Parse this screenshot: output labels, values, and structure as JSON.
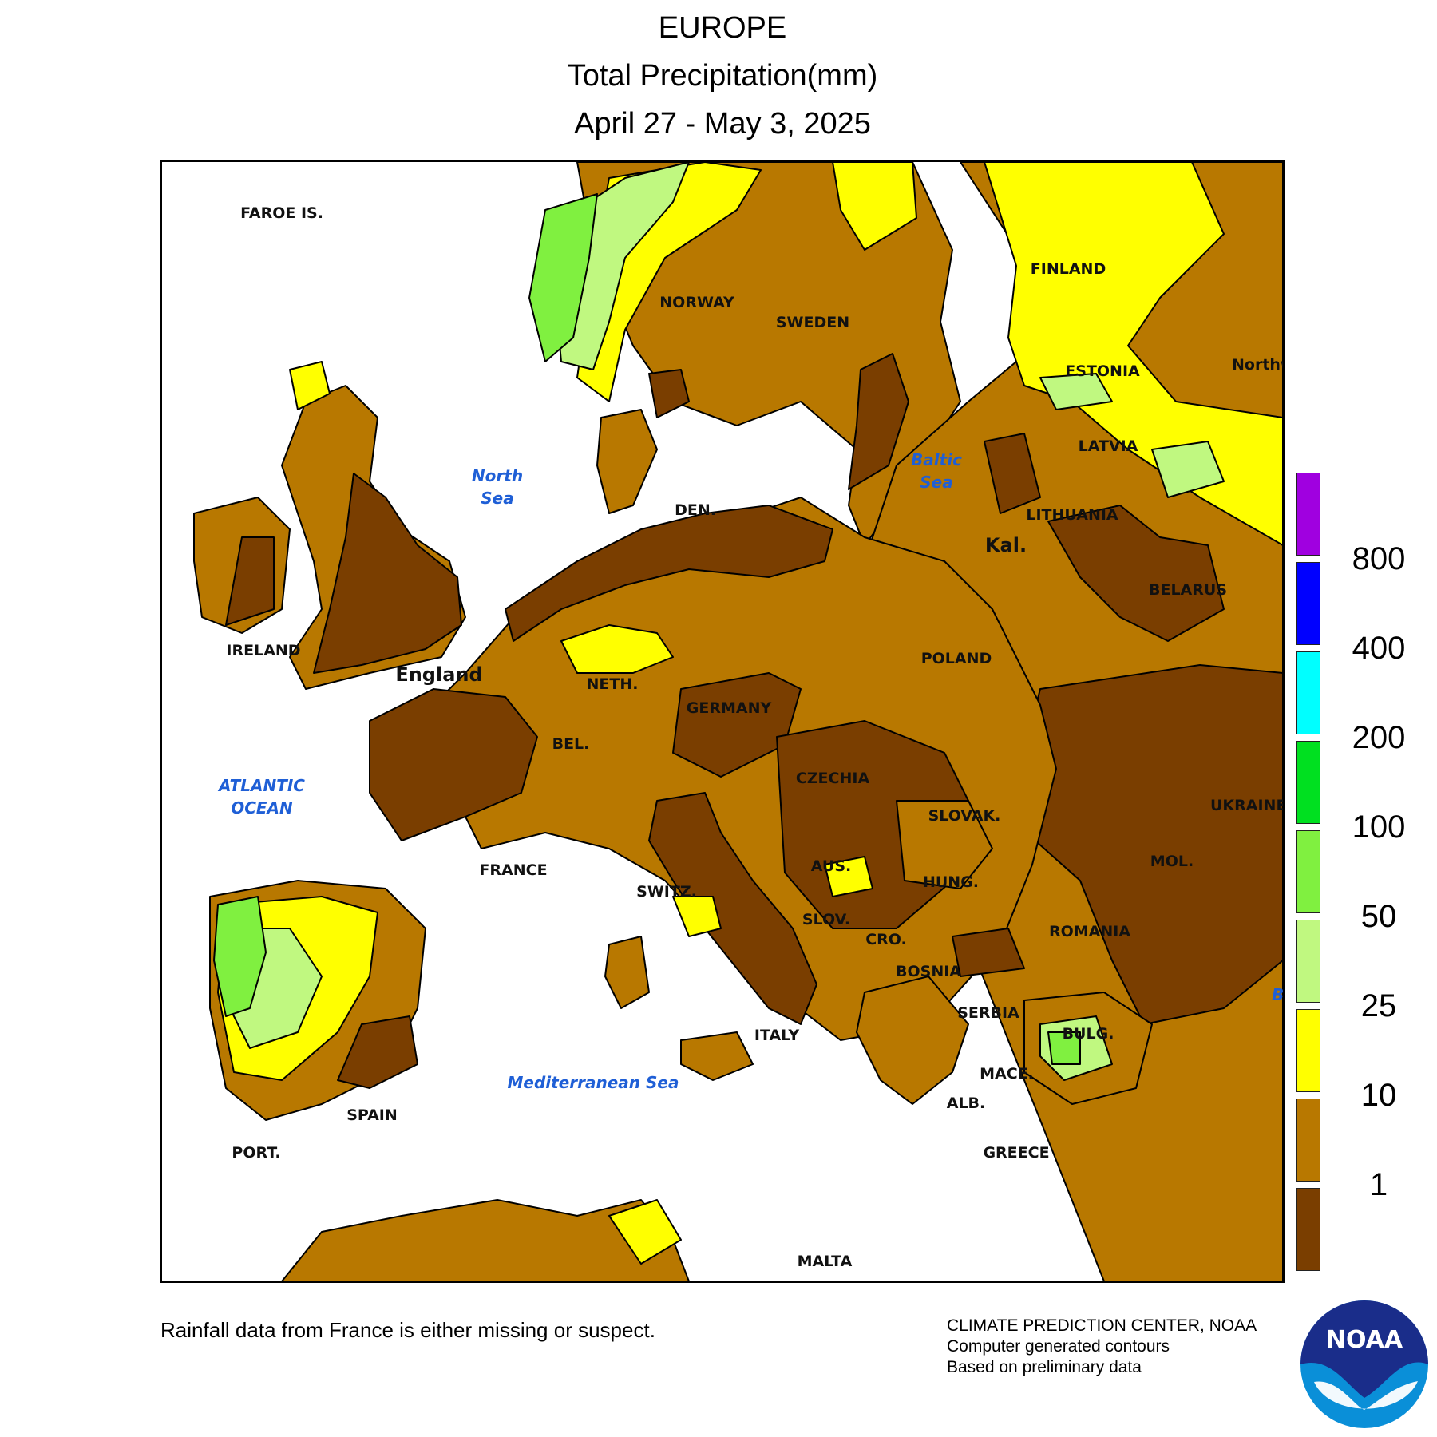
{
  "header": {
    "region": "EUROPE",
    "product": "Total Precipitation(mm)",
    "period": "April 27 - May 3, 2025"
  },
  "map": {
    "countries": [
      {
        "key": "faroe",
        "label": "FAROE IS."
      },
      {
        "key": "norway",
        "label": "NORWAY"
      },
      {
        "key": "sweden",
        "label": "SWEDEN"
      },
      {
        "key": "finland",
        "label": "FINLAND"
      },
      {
        "key": "estonia",
        "label": "ESTONIA"
      },
      {
        "key": "latvia",
        "label": "LATVIA"
      },
      {
        "key": "lithuania",
        "label": "LITHUANIA"
      },
      {
        "key": "kaliningrad",
        "label": "Kal."
      },
      {
        "key": "belarus",
        "label": "BELARUS"
      },
      {
        "key": "poland",
        "label": "POLAND"
      },
      {
        "key": "ukraine",
        "label": "UKRAINE"
      },
      {
        "key": "denmark",
        "label": "DEN."
      },
      {
        "key": "ireland",
        "label": "IRELAND"
      },
      {
        "key": "england",
        "label": "England"
      },
      {
        "key": "netherlands",
        "label": "NETH."
      },
      {
        "key": "belgium",
        "label": "BEL."
      },
      {
        "key": "germany",
        "label": "GERMANY"
      },
      {
        "key": "czechia",
        "label": "CZECHIA"
      },
      {
        "key": "slovakia",
        "label": "SLOVAK."
      },
      {
        "key": "france",
        "label": "FRANCE"
      },
      {
        "key": "switzerland",
        "label": "SWITZ."
      },
      {
        "key": "austria",
        "label": "AUS."
      },
      {
        "key": "hungary",
        "label": "HUNG."
      },
      {
        "key": "moldova",
        "label": "MOL."
      },
      {
        "key": "romania",
        "label": "ROMANIA"
      },
      {
        "key": "slovenia",
        "label": "SLOV."
      },
      {
        "key": "croatia",
        "label": "CRO."
      },
      {
        "key": "bosnia",
        "label": "BOSNIA"
      },
      {
        "key": "serbia",
        "label": "SERBIA"
      },
      {
        "key": "bulgaria",
        "label": "BULG."
      },
      {
        "key": "macedonia",
        "label": "MACE."
      },
      {
        "key": "albania",
        "label": "ALB."
      },
      {
        "key": "greece",
        "label": "GREECE"
      },
      {
        "key": "italy",
        "label": "ITALY"
      },
      {
        "key": "malta",
        "label": "MALTA"
      },
      {
        "key": "spain",
        "label": "SPAIN"
      },
      {
        "key": "portugal",
        "label": "PORT."
      },
      {
        "key": "nw_district",
        "label": "Northwestern District"
      }
    ],
    "seas": [
      {
        "key": "north_sea",
        "lines": [
          "North",
          "Sea"
        ]
      },
      {
        "key": "baltic_sea",
        "lines": [
          "Baltic",
          "Sea"
        ]
      },
      {
        "key": "atlantic",
        "lines": [
          "ATLANTIC",
          "OCEAN"
        ]
      },
      {
        "key": "mediterranean",
        "lines": [
          "Mediterranean Sea"
        ]
      },
      {
        "key": "black_sea",
        "lines": [
          "Black Sea"
        ]
      }
    ]
  },
  "legend": {
    "ticks": [
      "800",
      "400",
      "200",
      "100",
      "50",
      "25",
      "10",
      "1"
    ],
    "bins": [
      {
        "range": "> 800",
        "color": "#a000e0"
      },
      {
        "range": "400-800",
        "color": "#0000ff"
      },
      {
        "range": "200-400",
        "color": "#00ffff"
      },
      {
        "range": "100-200",
        "color": "#00e020"
      },
      {
        "range": "50-100",
        "color": "#80f040"
      },
      {
        "range": "25-50",
        "color": "#c0f880"
      },
      {
        "range": "10-25",
        "color": "#ffff00"
      },
      {
        "range": "1-10",
        "color": "#b87800"
      },
      {
        "range": "< 1",
        "color": "#7a3e00"
      }
    ]
  },
  "footer": {
    "note": "Rainfall data from France is either missing or suspect.",
    "credit": "CLIMATE PREDICTION CENTER, NOAA",
    "method": "Computer generated contours",
    "basis": "Based on preliminary data",
    "logo_text": "NOAA"
  }
}
